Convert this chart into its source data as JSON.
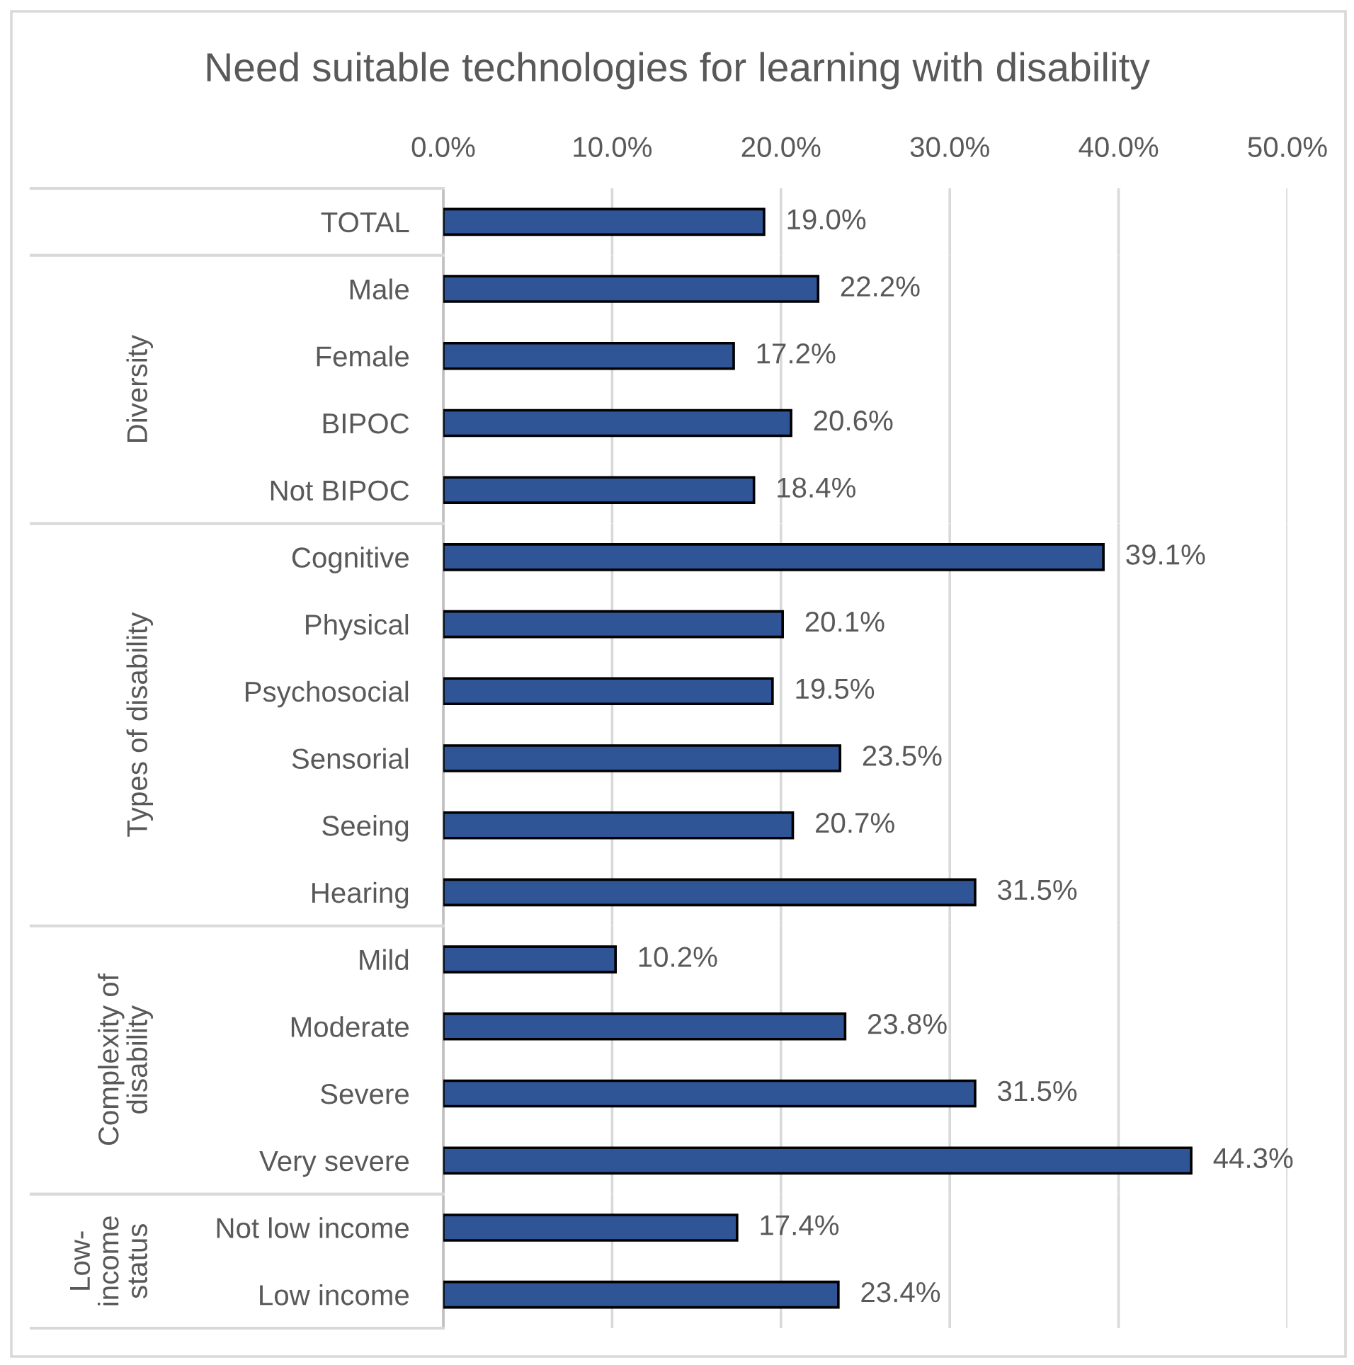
{
  "chart_data": [
    {
      "type": "bar",
      "orientation": "horizontal",
      "title": "Need suitable technologies for learning with disability",
      "categories": [
        "TOTAL"
      ],
      "values": [
        19.0
      ],
      "value_labels": [
        "19.0%"
      ],
      "color": "#2f5597",
      "xlim": [
        0,
        50
      ],
      "xticks": [
        {
          "value": 0,
          "label": "0.0%"
        },
        {
          "value": 10,
          "label": "10.0%"
        },
        {
          "value": 20,
          "label": "20.0%"
        },
        {
          "value": 30,
          "label": "30.0%"
        },
        {
          "value": 40,
          "label": "40.0%"
        },
        {
          "value": 50,
          "label": "50.0%"
        }
      ],
      "grid": "x"
    },
    {
      "type": "bar",
      "orientation": "horizontal",
      "ylabel": "Diversity",
      "categories": [
        "Male",
        "Female",
        "BIPOC",
        "Not BIPOC"
      ],
      "values": [
        22.2,
        17.2,
        20.6,
        18.4
      ],
      "value_labels": [
        "22.2%",
        "17.2%",
        "20.6%",
        "18.4%"
      ],
      "color": "#2f5597",
      "xlim": [
        0,
        50
      ],
      "xticks": [
        {
          "value": 0,
          "label": null
        },
        {
          "value": 10,
          "label": null
        },
        {
          "value": 20,
          "label": null
        },
        {
          "value": 30,
          "label": null
        },
        {
          "value": 40,
          "label": null
        },
        {
          "value": 50,
          "label": null
        }
      ],
      "grid": "x",
      "tick_labels": "y"
    },
    {
      "type": "bar",
      "orientation": "horizontal",
      "ylabel": "Types of disability",
      "categories": [
        "Cognitive",
        "Physical",
        "Psychosocial",
        "Sensorial",
        "Seeing",
        "Hearing"
      ],
      "values": [
        39.1,
        20.1,
        19.5,
        23.5,
        20.7,
        31.5
      ],
      "value_labels": [
        "39.1%",
        "20.1%",
        "19.5%",
        "23.5%",
        "20.7%",
        "31.5%"
      ],
      "color": "#2f5597",
      "xlim": [
        0,
        50
      ],
      "xticks": [
        {
          "value": 0,
          "label": null
        },
        {
          "value": 10,
          "label": null
        },
        {
          "value": 20,
          "label": null
        },
        {
          "value": 30,
          "label": null
        },
        {
          "value": 40,
          "label": null
        },
        {
          "value": 50,
          "label": null
        }
      ],
      "grid": "x",
      "tick_labels": "y"
    },
    {
      "type": "bar",
      "orientation": "horizontal",
      "ylabel": "Complexity of disability",
      "categories": [
        "Mild",
        "Moderate",
        "Severe",
        "Very severe"
      ],
      "values": [
        10.2,
        23.8,
        31.5,
        44.3
      ],
      "value_labels": [
        "10.2%",
        "23.8%",
        "31.5%",
        "44.3%"
      ],
      "color": "#2f5597",
      "xlim": [
        0,
        50
      ],
      "xticks": [
        {
          "value": 0,
          "label": null
        },
        {
          "value": 10,
          "label": null
        },
        {
          "value": 20,
          "label": null
        },
        {
          "value": 30,
          "label": null
        },
        {
          "value": 40,
          "label": null
        },
        {
          "value": 50,
          "label": null
        }
      ],
      "grid": "x",
      "tick_labels": "y"
    },
    {
      "type": "bar",
      "orientation": "horizontal",
      "ylabel": "Low-income status",
      "categories": [
        "Not low income",
        "Low income"
      ],
      "values": [
        17.4,
        23.4
      ],
      "value_labels": [
        "17.4%",
        "23.4%"
      ],
      "color": "#2f5597",
      "xlim": [
        0,
        50
      ],
      "xticks": [
        {
          "value": 0,
          "label": null
        },
        {
          "value": 10,
          "label": null
        },
        {
          "value": 20,
          "label": null
        },
        {
          "value": 30,
          "label": null
        },
        {
          "value": 40,
          "label": null
        },
        {
          "value": 50,
          "label": null
        }
      ],
      "grid": "x",
      "tick_labels": "y"
    }
  ]
}
